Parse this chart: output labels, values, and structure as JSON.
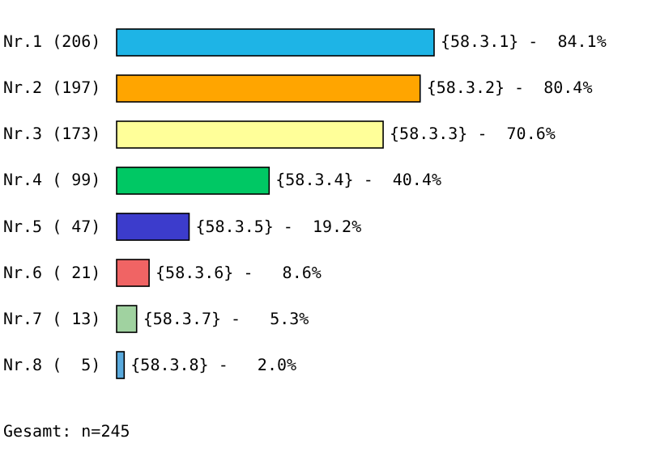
{
  "chart_data": {
    "type": "bar",
    "orientation": "horizontal",
    "categories": [
      "Nr.1 (206)",
      "Nr.2 (197)",
      "Nr.3 (173)",
      "Nr.4 ( 99)",
      "Nr.5 ( 47)",
      "Nr.6 ( 21)",
      "Nr.7 ( 13)",
      "Nr.8 (  5)"
    ],
    "values": [
      84.1,
      80.4,
      70.6,
      40.4,
      19.2,
      8.6,
      5.3,
      2.0
    ],
    "colors": [
      "#1eb4e6",
      "#ffa500",
      "#ffff99",
      "#00c864",
      "#3c3ccc",
      "#f06464",
      "#a0d2a0",
      "#5aaadd"
    ],
    "value_labels": [
      "{58.3.1} -  84.1%",
      "{58.3.2} -  80.4%",
      "{58.3.3} -  70.6%",
      "{58.3.4} -  40.4%",
      "{58.3.5} -  19.2%",
      "{58.3.6} -   8.6%",
      "{58.3.7} -   5.3%",
      "{58.3.8} -   2.0%"
    ],
    "annotations": [
      "Gesamt: n=245"
    ]
  }
}
